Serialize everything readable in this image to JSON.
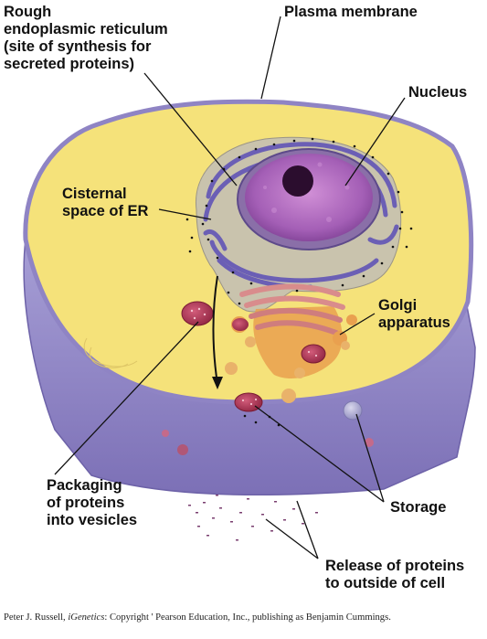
{
  "labels": {
    "rough_er": [
      "Rough",
      "endoplasmic reticulum",
      "(site of synthesis for",
      "secreted proteins)"
    ],
    "plasma_membrane": "Plasma membrane",
    "nucleus": "Nucleus",
    "cisternal_space": [
      "Cisternal",
      "space of ER"
    ],
    "golgi": [
      "Golgi",
      "apparatus"
    ],
    "packaging": [
      "Packaging",
      "of proteins",
      "into vesicles"
    ],
    "storage": "Storage",
    "release": [
      "Release of proteins",
      "to outside of cell"
    ]
  },
  "credit": {
    "author": "Peter J. Russell, ",
    "book": "iGenetics",
    "rest": ": Copyright ' Pearson Education, Inc., publishing as Benjamin Cummings."
  },
  "colors": {
    "cytoplasm": "#f5e27a",
    "membrane": "#8f84c4",
    "nucleus": "#b36cc0",
    "er": "#6b5fb5",
    "golgi": "#d98c8c",
    "vesicle": "#a8304e",
    "leader_line": "#111111"
  }
}
